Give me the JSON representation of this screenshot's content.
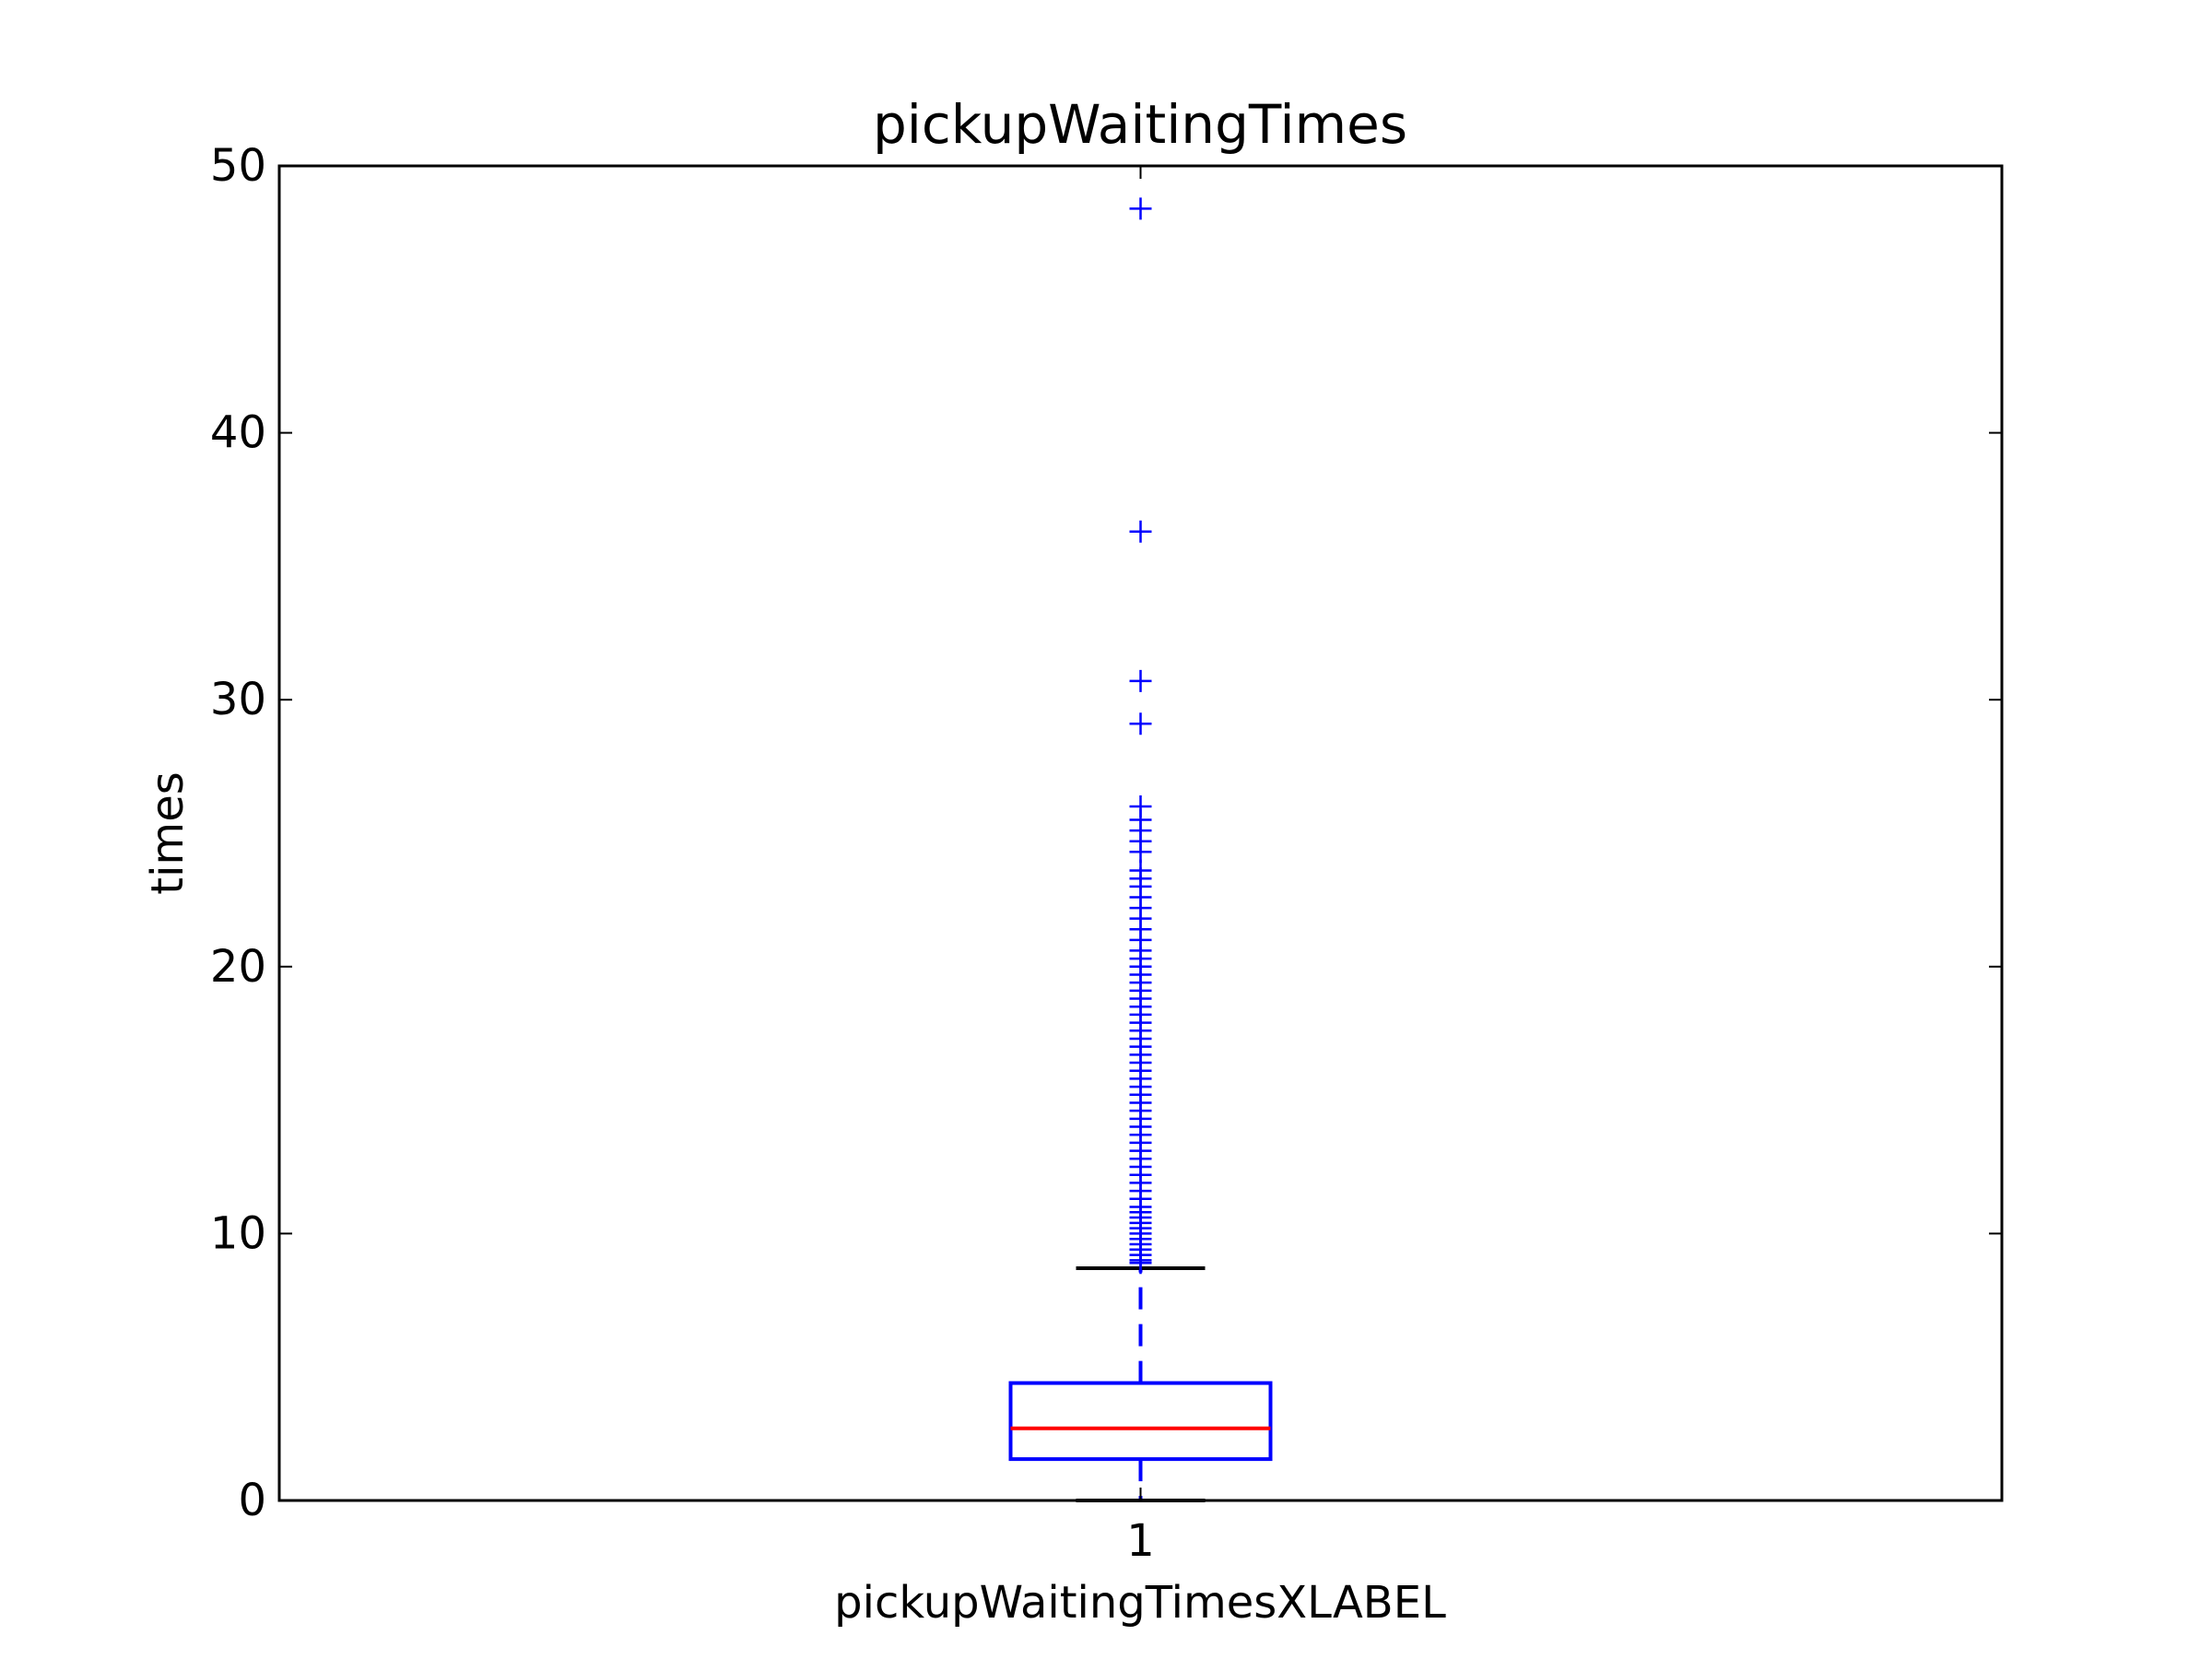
{
  "chart_data": {
    "type": "box",
    "title": "pickupWaitingTimes",
    "xlabel": "pickupWaitingTimesXLABEL",
    "ylabel": "times",
    "categories": [
      "1"
    ],
    "ylim": [
      0,
      50
    ],
    "yticks": [
      "0",
      "10",
      "20",
      "30",
      "40",
      "50"
    ],
    "box": {
      "whisker_low": 0.0,
      "q1": 1.55,
      "median": 2.7,
      "q3": 4.4,
      "whisker_high": 8.7
    },
    "outliers": [
      48.4,
      36.3,
      30.7,
      29.1,
      26.0,
      25.5,
      25.1,
      24.7,
      24.3,
      23.6,
      23.3,
      23.0,
      22.6,
      22.2,
      21.8,
      21.4,
      21.0,
      20.6,
      20.3,
      20.0,
      19.7,
      19.4,
      19.1,
      18.8,
      18.5,
      18.2,
      17.9,
      17.6,
      17.3,
      17.0,
      16.7,
      16.4,
      16.1,
      15.8,
      15.5,
      15.2,
      14.9,
      14.6,
      14.3,
      14.0,
      13.7,
      13.4,
      13.1,
      12.8,
      12.5,
      12.2,
      11.9,
      11.6,
      11.3,
      11.0,
      10.8,
      10.6,
      10.4,
      10.2,
      10.0,
      9.8,
      9.6,
      9.4,
      9.2,
      9.0,
      8.9
    ],
    "colors": {
      "box": "#0000ff",
      "median": "#ff0000",
      "whisker_cap": "#000000",
      "outlier": "#0000ff",
      "axes": "#000000"
    }
  }
}
